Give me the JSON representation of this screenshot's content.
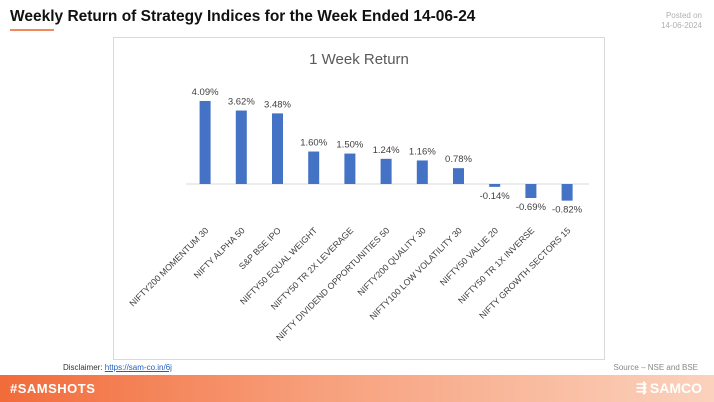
{
  "header": {
    "title": "Weekly Return of Strategy Indices for the Week Ended 14-06-24",
    "posted_label": "Posted on",
    "posted_date": "14-06-2024"
  },
  "chart_data": {
    "type": "bar",
    "title": "1 Week Return",
    "categories": [
      "NIFTY200 MOMENTUM 30",
      "NIFTY ALPHA 50",
      "S&P BSE IPO",
      "NIFTY50 EQUAL WEIGHT",
      "NIFTY50 TR 2X LEVERAGE",
      "NIFTY DIVIDEND OPPORTUNITIES 50",
      "NIFTY200 QUALITY 30",
      "NIFTY100 LOW VOLATILITY 30",
      "NIFTY50 VALUE 20",
      "NIFTY50 TR 1X INVERSE",
      "NIFTY GROWTH SECTORS 15"
    ],
    "values": [
      4.09,
      3.62,
      3.48,
      1.6,
      1.5,
      1.24,
      1.16,
      0.78,
      -0.14,
      -0.69,
      -0.82
    ],
    "data_labels": [
      "4.09%",
      "3.62%",
      "3.48%",
      "1.60%",
      "1.50%",
      "1.24%",
      "1.16%",
      "0.78%",
      "-0.14%",
      "-0.69%",
      "-0.82%"
    ],
    "bar_color": "#4472c4",
    "ylim": [
      -0.82,
      4.09
    ],
    "grid": false,
    "legend": "none"
  },
  "footer": {
    "disclaimer_label": "Disclaimer: ",
    "disclaimer_link": "https://sam-co.in/6j",
    "source": "Source – NSE and BSE",
    "hashtag": "#SAMSHOTS",
    "brand": "SAMCO",
    "brand_icon": "samco-logo-icon"
  },
  "colors": {
    "accent": "#f26b3a",
    "bar": "#4472c4"
  }
}
